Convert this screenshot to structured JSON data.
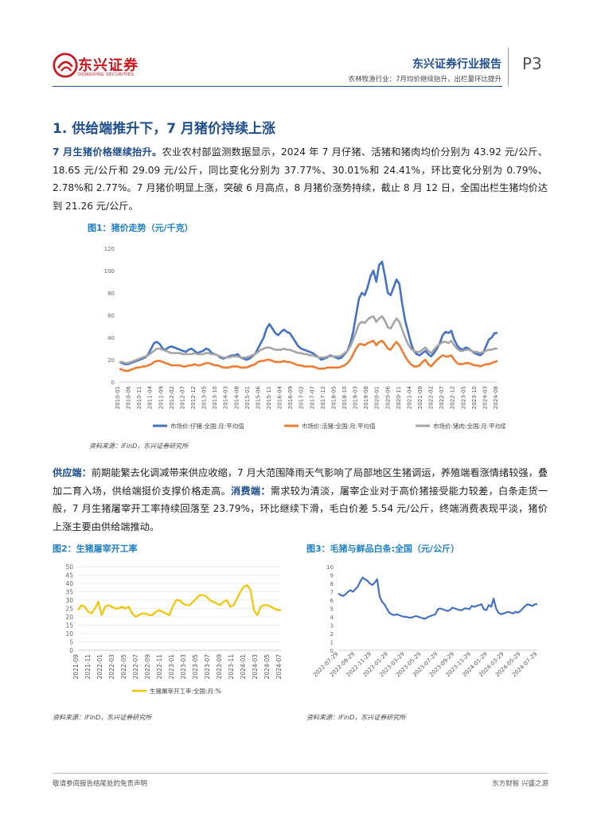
{
  "header": {
    "logo_cn": "东兴证券",
    "logo_en": "DONGXING SECURITIES",
    "report_title": "东兴证券行业报告",
    "subtitle": "农林牧渔行业：7月均价继续抬升，出栏量环比提升",
    "page": "P3",
    "colors": {
      "brand_red": "#c8161d",
      "brand_blue": "#1f4e8c",
      "figure_blue": "#1f7fc4"
    }
  },
  "section": {
    "title": "1. 供给端推升下，7 月猪价持续上涨"
  },
  "para1": {
    "lead": "7 月生猪价格继续抬升。",
    "body": "农业农村部监测数据显示，2024 年 7 月仔猪、活猪和猪肉均价分别为 43.92 元/公斤、18.65 元/公斤和 29.09 元/公斤，同比变化分别为 37.77%、30.01%和 24.41%，环比变化分别为 0.79%、2.78%和 2.77%。7 月猪价明显上涨，突破 6 月高点，8 月猪价涨势持续，截止 8 月 12 日，全国出栏生猪均价达到 21.26 元/公斤。"
  },
  "para2": {
    "lead1": "供应端：",
    "body1": "前期能繁去化调减带来供应收缩，7 月大范围降雨天气影响了局部地区生猪调运，养殖端看涨情绪较强，叠加二育入场，供给端挺价支撑价格走高。",
    "lead2": "消费端：",
    "body2": "需求较为清淡，屠宰企业对于高价猪接受能力较差，白条走货一般，7 月生猪屠宰开工率持续回落至 23.79%，环比继续下滑，毛白价差 5.54 元/公斤，终端消费表现平淡，猪价上涨主要由供给端推动。"
  },
  "figure1": {
    "title": "图1：猪价走势（元/千克）",
    "source": "资料来源：iFinD，东兴证券研究所"
  },
  "figure2": {
    "title": "图2：生猪屠宰开工率",
    "source": "资料来源：iFinD，东兴证券研究所"
  },
  "figure3": {
    "title": "图3：毛猪与鲜品白条:全国（元/公斤）",
    "source": "资料来源：iFinD，东兴证券研究所"
  },
  "footer": {
    "left": "敬请参阅报告结尾处的免责声明",
    "right": "东方财智  兴盛之源"
  },
  "chart_data": [
    {
      "type": "line",
      "title": "",
      "ylim": [
        0,
        120
      ],
      "yticks": [
        0,
        20,
        40,
        60,
        80,
        100,
        120
      ],
      "xticks": [
        "2010-01",
        "2010-06",
        "2010-11",
        "2011-04",
        "2011-09",
        "2012-02",
        "2012-07",
        "2012-12",
        "2013-05",
        "2013-10",
        "2014-03",
        "2014-08",
        "2015-01",
        "2015-06",
        "2015-11",
        "2016-04",
        "2016-09",
        "2017-02",
        "2017-07",
        "2017-12",
        "2018-05",
        "2018-10",
        "2019-03",
        "2019-08",
        "2020-01",
        "2020-06",
        "2020-11",
        "2021-04",
        "2021-09",
        "2022-02",
        "2022-07",
        "2022-12",
        "2023-05",
        "2023-10",
        "2024-03",
        "2024-08"
      ],
      "legend_position": "bottom",
      "series": [
        {
          "name": "市场价:仔猪:全国:月:平均值",
          "color": "#4472c4",
          "values": [
            18,
            17,
            16,
            16,
            17,
            18,
            19,
            20,
            21,
            22,
            25,
            30,
            35,
            36,
            34,
            30,
            29,
            31,
            32,
            31,
            30,
            29,
            28,
            27,
            29,
            30,
            28,
            26,
            27,
            28,
            30,
            29,
            26,
            25,
            24,
            22,
            21,
            22,
            23,
            24,
            24,
            25,
            22,
            21,
            20,
            21,
            23,
            25,
            30,
            35,
            40,
            48,
            52,
            48,
            44,
            42,
            45,
            47,
            45,
            44,
            40,
            36,
            32,
            30,
            29,
            28,
            27,
            26,
            24,
            22,
            20,
            21,
            22,
            24,
            23,
            22,
            21,
            22,
            25,
            28,
            35,
            45,
            60,
            75,
            80,
            78,
            85,
            95,
            100,
            90,
            105,
            108,
            95,
            80,
            78,
            85,
            92,
            88,
            70,
            55,
            45,
            35,
            28,
            25,
            24,
            26,
            28,
            25,
            23,
            26,
            30,
            35,
            42,
            45,
            44,
            46,
            38,
            33,
            30,
            29,
            31,
            30,
            28,
            26,
            25,
            24,
            26,
            32,
            38,
            40,
            44,
            44
          ]
        },
        {
          "name": "市场价:活猪:全国:月:平均值",
          "color": "#ed7d31",
          "values": [
            12,
            11,
            10,
            10,
            11,
            12,
            13,
            13,
            14,
            14,
            15,
            16,
            18,
            19,
            19,
            18,
            17,
            16,
            15,
            15,
            15,
            15,
            14,
            14,
            15,
            15,
            16,
            15,
            15,
            16,
            17,
            17,
            16,
            15,
            15,
            14,
            13,
            13,
            13,
            14,
            14,
            14,
            13,
            13,
            13,
            14,
            15,
            16,
            18,
            19,
            19,
            20,
            20,
            19,
            18,
            18,
            18,
            19,
            18,
            18,
            17,
            16,
            15,
            15,
            14,
            14,
            14,
            14,
            13,
            12,
            12,
            12,
            13,
            13,
            13,
            13,
            13,
            14,
            15,
            17,
            20,
            25,
            30,
            34,
            34,
            33,
            35,
            36,
            37,
            33,
            36,
            37,
            34,
            30,
            29,
            33,
            36,
            33,
            28,
            23,
            19,
            16,
            14,
            14,
            15,
            18,
            20,
            16,
            14,
            17,
            20,
            22,
            24,
            23,
            23,
            24,
            20,
            17,
            16,
            16,
            17,
            17,
            16,
            15,
            15,
            14,
            15,
            16,
            16,
            17,
            18,
            19
          ]
        },
        {
          "name": "市场价:猪肉:全国:月:平均值",
          "color": "#a5a5a5",
          "values": [
            18,
            18,
            17,
            17,
            18,
            19,
            20,
            21,
            22,
            23,
            24,
            26,
            28,
            30,
            30,
            29,
            28,
            27,
            26,
            26,
            26,
            26,
            25,
            25,
            25,
            25,
            26,
            25,
            25,
            25,
            26,
            26,
            25,
            25,
            24,
            23,
            22,
            22,
            22,
            23,
            23,
            23,
            22,
            22,
            22,
            23,
            24,
            25,
            27,
            29,
            30,
            31,
            31,
            30,
            29,
            29,
            29,
            30,
            29,
            29,
            28,
            27,
            26,
            26,
            25,
            25,
            24,
            24,
            23,
            22,
            22,
            22,
            23,
            23,
            23,
            23,
            23,
            24,
            26,
            28,
            32,
            38,
            45,
            52,
            54,
            53,
            56,
            58,
            59,
            54,
            57,
            59,
            55,
            49,
            48,
            53,
            57,
            54,
            47,
            40,
            34,
            30,
            28,
            27,
            27,
            29,
            31,
            28,
            26,
            29,
            32,
            34,
            36,
            36,
            35,
            37,
            33,
            30,
            28,
            28,
            29,
            29,
            28,
            27,
            27,
            26,
            27,
            28,
            29,
            29,
            30,
            30
          ]
        }
      ]
    },
    {
      "type": "line",
      "title": "",
      "ylim": [
        0,
        50
      ],
      "yticks": [
        0,
        5,
        10,
        15,
        20,
        25,
        30,
        35,
        40,
        45,
        50
      ],
      "xticks": [
        "2021-09",
        "2021-11",
        "2022-01",
        "2022-03",
        "2022-05",
        "2022-07",
        "2022-09",
        "2022-11",
        "2023-01",
        "2023-03",
        "2023-05",
        "2023-07",
        "2023-09",
        "2023-11",
        "2024-01",
        "2024-03",
        "2024-05",
        "2024-07"
      ],
      "legend_position": "bottom",
      "series": [
        {
          "name": "生猪屠宰开工率:全国:月:%",
          "color": "#f5c400",
          "values": [
            24,
            27,
            26,
            23,
            22,
            25,
            29,
            21,
            26,
            27,
            26,
            25,
            25,
            26,
            25,
            26,
            22,
            20,
            21,
            22,
            22,
            21,
            21,
            23,
            24,
            23,
            22,
            21,
            26,
            30,
            30,
            28,
            27,
            27,
            29,
            31,
            33,
            33,
            32,
            30,
            29,
            28,
            27,
            29,
            30,
            26,
            27,
            31,
            35,
            38,
            39,
            36,
            24,
            21,
            26,
            27,
            27,
            26,
            25,
            24,
            24
          ]
        }
      ]
    },
    {
      "type": "line",
      "title": "",
      "ylim": [
        0,
        10
      ],
      "yticks": [
        0,
        1,
        2,
        3,
        4,
        5,
        6,
        7,
        8,
        9,
        10
      ],
      "xticks": [
        "2022-07-29",
        "2022-09-29",
        "2022-11-29",
        "2023-01-29",
        "2023-03-29",
        "2023-05-29",
        "2023-07-29",
        "2023-09-29",
        "2023-11-29",
        "2024-01-29",
        "2024-03-29",
        "2024-05-29",
        "2024-07-29"
      ],
      "series": [
        {
          "name": "",
          "color": "#4472c4",
          "values": [
            6.8,
            6.6,
            6.5,
            6.7,
            7.0,
            7.2,
            7.0,
            7.3,
            7.6,
            8.2,
            8.7,
            8.5,
            8.3,
            8.0,
            7.8,
            8.1,
            8.5,
            6.5,
            5.8,
            5.5,
            5.0,
            4.5,
            4.3,
            4.2,
            4.3,
            4.2,
            4.1,
            4.0,
            4.0,
            3.9,
            3.9,
            4.0,
            4.1,
            4.0,
            3.9,
            3.8,
            3.8,
            4.0,
            4.1,
            4.2,
            4.3,
            4.9,
            5.0,
            4.9,
            4.8,
            4.7,
            4.8,
            5.1,
            5.0,
            4.9,
            4.8,
            4.8,
            5.0,
            5.0,
            4.9,
            5.3,
            5.2,
            5.3,
            5.4,
            5.5,
            4.9,
            4.8,
            5.4,
            5.2,
            6.2,
            5.0,
            4.5,
            4.3,
            4.4,
            4.5,
            4.6,
            4.5,
            4.4,
            4.6,
            4.5,
            4.7,
            5.0,
            5.3,
            5.5,
            5.4,
            5.3,
            5.5,
            5.5
          ]
        }
      ]
    }
  ]
}
